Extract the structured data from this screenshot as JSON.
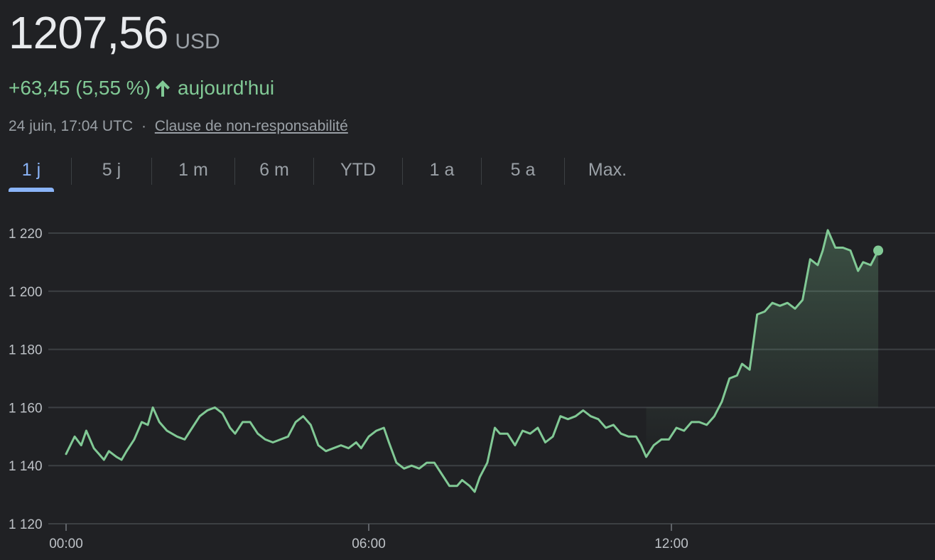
{
  "quote": {
    "price": "1207,56",
    "currency": "USD",
    "change": "+63,45 (5,55 %)",
    "period": "aujourd'hui",
    "timestamp": "24 juin, 17:04 UTC",
    "separator": "·",
    "disclaimer": "Clause de non-responsabilité",
    "up_color": "#81c995",
    "change_direction": "up"
  },
  "tabs": [
    {
      "label": "1 j",
      "active": true
    },
    {
      "label": "5 j",
      "active": false
    },
    {
      "label": "1 m",
      "active": false
    },
    {
      "label": "6 m",
      "active": false
    },
    {
      "label": "YTD",
      "active": false
    },
    {
      "label": "1 a",
      "active": false
    },
    {
      "label": "5 a",
      "active": false
    },
    {
      "label": "Max.",
      "active": false
    }
  ],
  "chart_data": {
    "type": "line",
    "title": "",
    "xlabel": "",
    "ylabel": "",
    "x_unit": "hours",
    "x_ticks": [
      {
        "value": 0,
        "label": "00:00"
      },
      {
        "value": 6,
        "label": "06:00"
      },
      {
        "value": 12,
        "label": "12:00"
      }
    ],
    "y_ticks": [
      {
        "value": 1120,
        "label": "1 120"
      },
      {
        "value": 1140,
        "label": "1 140"
      },
      {
        "value": 1160,
        "label": "1 160"
      },
      {
        "value": 1180,
        "label": "1 180"
      },
      {
        "value": 1200,
        "label": "1 200"
      },
      {
        "value": 1220,
        "label": "1 220"
      }
    ],
    "xlim": [
      0,
      17.07
    ],
    "ylim": [
      1120,
      1220
    ],
    "grid": true,
    "line_color": "#81c995",
    "fill_from": 11.5,
    "series": [
      {
        "values": [
          [
            0.0,
            1144
          ],
          [
            0.17,
            1150
          ],
          [
            0.3,
            1147
          ],
          [
            0.4,
            1152
          ],
          [
            0.55,
            1146
          ],
          [
            0.65,
            1144
          ],
          [
            0.75,
            1142
          ],
          [
            0.85,
            1145
          ],
          [
            1.0,
            1143
          ],
          [
            1.1,
            1142
          ],
          [
            1.2,
            1145
          ],
          [
            1.35,
            1149
          ],
          [
            1.5,
            1155
          ],
          [
            1.62,
            1154
          ],
          [
            1.72,
            1160
          ],
          [
            1.85,
            1155
          ],
          [
            2.0,
            1152
          ],
          [
            2.2,
            1150
          ],
          [
            2.35,
            1149
          ],
          [
            2.5,
            1153
          ],
          [
            2.65,
            1157
          ],
          [
            2.8,
            1159
          ],
          [
            2.95,
            1160
          ],
          [
            3.1,
            1158
          ],
          [
            3.25,
            1153
          ],
          [
            3.35,
            1151
          ],
          [
            3.5,
            1155
          ],
          [
            3.65,
            1155
          ],
          [
            3.8,
            1151
          ],
          [
            3.95,
            1149
          ],
          [
            4.1,
            1148
          ],
          [
            4.25,
            1149
          ],
          [
            4.4,
            1150
          ],
          [
            4.55,
            1155
          ],
          [
            4.7,
            1157
          ],
          [
            4.85,
            1154
          ],
          [
            5.0,
            1147
          ],
          [
            5.15,
            1145
          ],
          [
            5.3,
            1146
          ],
          [
            5.45,
            1147
          ],
          [
            5.6,
            1146
          ],
          [
            5.75,
            1148
          ],
          [
            5.85,
            1146
          ],
          [
            6.0,
            1150
          ],
          [
            6.15,
            1152
          ],
          [
            6.3,
            1153
          ],
          [
            6.4,
            1148
          ],
          [
            6.55,
            1141
          ],
          [
            6.7,
            1139
          ],
          [
            6.85,
            1140
          ],
          [
            7.0,
            1139
          ],
          [
            7.15,
            1141
          ],
          [
            7.3,
            1141
          ],
          [
            7.45,
            1137
          ],
          [
            7.6,
            1133
          ],
          [
            7.75,
            1133
          ],
          [
            7.85,
            1135
          ],
          [
            8.0,
            1133
          ],
          [
            8.1,
            1131
          ],
          [
            8.2,
            1136
          ],
          [
            8.35,
            1141
          ],
          [
            8.5,
            1153
          ],
          [
            8.6,
            1151
          ],
          [
            8.75,
            1151
          ],
          [
            8.9,
            1147
          ],
          [
            9.05,
            1152
          ],
          [
            9.2,
            1151
          ],
          [
            9.35,
            1153
          ],
          [
            9.5,
            1148
          ],
          [
            9.65,
            1150
          ],
          [
            9.8,
            1157
          ],
          [
            9.95,
            1156
          ],
          [
            10.1,
            1157
          ],
          [
            10.25,
            1159
          ],
          [
            10.4,
            1157
          ],
          [
            10.55,
            1156
          ],
          [
            10.7,
            1153
          ],
          [
            10.85,
            1154
          ],
          [
            11.0,
            1151
          ],
          [
            11.15,
            1150
          ],
          [
            11.3,
            1150
          ],
          [
            11.4,
            1147
          ],
          [
            11.5,
            1143
          ],
          [
            11.65,
            1147
          ],
          [
            11.8,
            1149
          ],
          [
            11.95,
            1149
          ],
          [
            12.1,
            1153
          ],
          [
            12.25,
            1152
          ],
          [
            12.4,
            1155
          ],
          [
            12.55,
            1155
          ],
          [
            12.7,
            1154
          ],
          [
            12.85,
            1157
          ],
          [
            13.0,
            1162
          ],
          [
            13.15,
            1170
          ],
          [
            13.3,
            1171
          ],
          [
            13.4,
            1175
          ],
          [
            13.55,
            1173
          ],
          [
            13.7,
            1192
          ],
          [
            13.85,
            1193
          ],
          [
            14.0,
            1196
          ],
          [
            14.15,
            1195
          ],
          [
            14.3,
            1196
          ],
          [
            14.45,
            1194
          ],
          [
            14.6,
            1197
          ],
          [
            14.75,
            1211
          ],
          [
            14.9,
            1209
          ],
          [
            15.0,
            1214
          ],
          [
            15.1,
            1221
          ],
          [
            15.25,
            1215
          ],
          [
            15.4,
            1215
          ],
          [
            15.55,
            1214
          ],
          [
            15.7,
            1207
          ],
          [
            15.8,
            1210
          ],
          [
            15.95,
            1209
          ],
          [
            16.1,
            1214
          ]
        ]
      }
    ]
  }
}
